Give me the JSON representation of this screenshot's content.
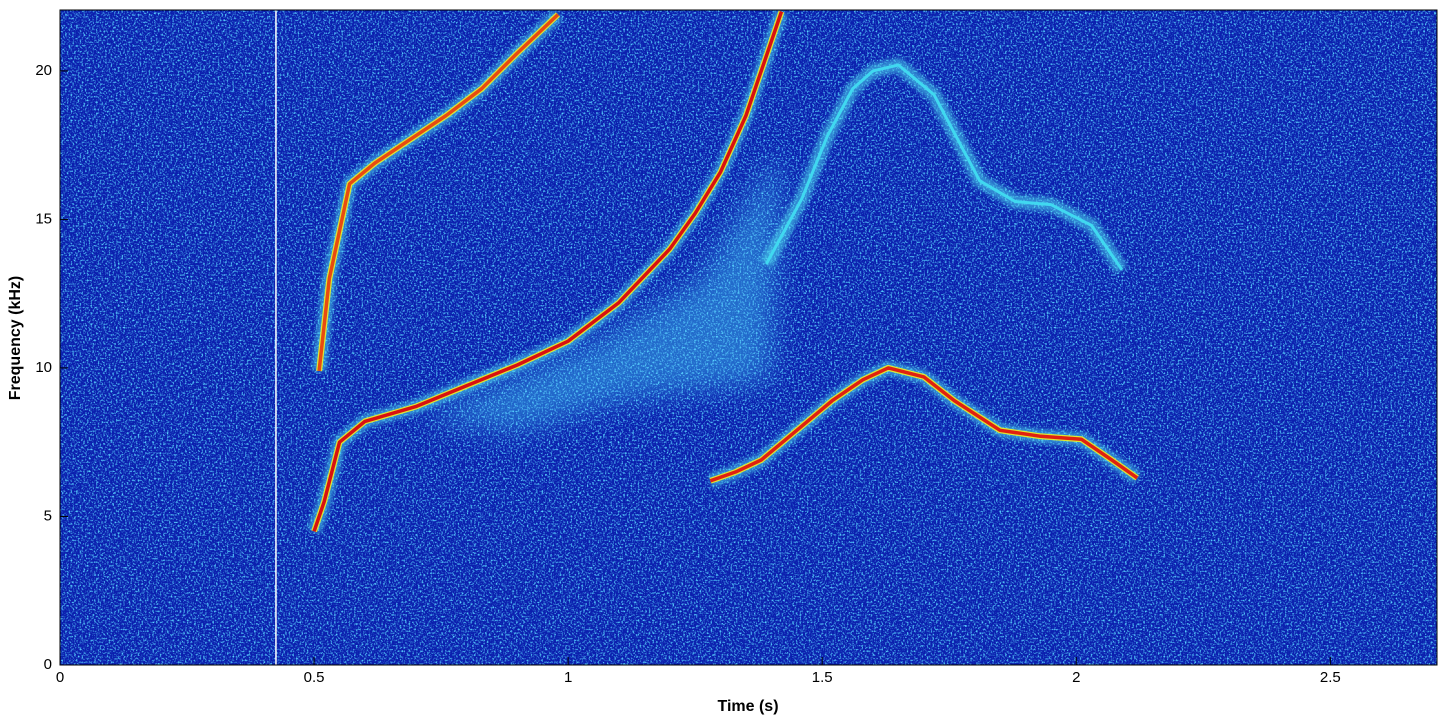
{
  "chart_data": {
    "type": "spectrogram",
    "xlabel": "Time (s)",
    "ylabel": "Frequency (kHz)",
    "xlim": [
      0,
      2.71
    ],
    "ylim": [
      0,
      22.05
    ],
    "xticks": [
      0,
      0.5,
      1,
      1.5,
      2,
      2.5
    ],
    "yticks": [
      0,
      5,
      10,
      15,
      20
    ],
    "background_color": "#0b1fae",
    "cursor_x": 0.425,
    "series": [
      {
        "color": "#d81010",
        "x": [
          0.5,
          0.52,
          0.55,
          0.6,
          0.7,
          0.8,
          0.9,
          1.0,
          1.1,
          1.2,
          1.25,
          1.3,
          1.35,
          1.4,
          1.42
        ],
        "values": [
          4.5,
          5.5,
          7.5,
          8.2,
          8.7,
          9.4,
          10.1,
          10.9,
          12.2,
          14.0,
          15.2,
          16.6,
          18.5,
          21,
          22
        ]
      },
      {
        "color": "#e84a10",
        "x": [
          0.51,
          0.53,
          0.57,
          0.62,
          0.69,
          0.76,
          0.83,
          0.9,
          0.98
        ],
        "values": [
          9.9,
          13.0,
          16.2,
          16.9,
          17.7,
          18.5,
          19.4,
          20.6,
          21.9
        ]
      },
      {
        "color": "#e02010",
        "x": [
          1.28,
          1.33,
          1.38,
          1.45,
          1.52,
          1.58,
          1.63,
          1.7,
          1.76,
          1.85,
          1.93,
          2.01,
          2.07,
          2.12
        ],
        "values": [
          6.2,
          6.5,
          6.9,
          7.9,
          8.9,
          9.6,
          10.0,
          9.7,
          8.9,
          7.9,
          7.7,
          7.6,
          6.9,
          6.3
        ]
      },
      {
        "color": "#40d8f0",
        "x": [
          1.39,
          1.46,
          1.51,
          1.56,
          1.6,
          1.65,
          1.72,
          1.81,
          1.88,
          1.95,
          2.03,
          2.09
        ],
        "values": [
          13.5,
          15.7,
          17.8,
          19.4,
          20.0,
          20.2,
          19.2,
          16.3,
          15.6,
          15.5,
          14.8,
          13.3
        ]
      }
    ]
  }
}
